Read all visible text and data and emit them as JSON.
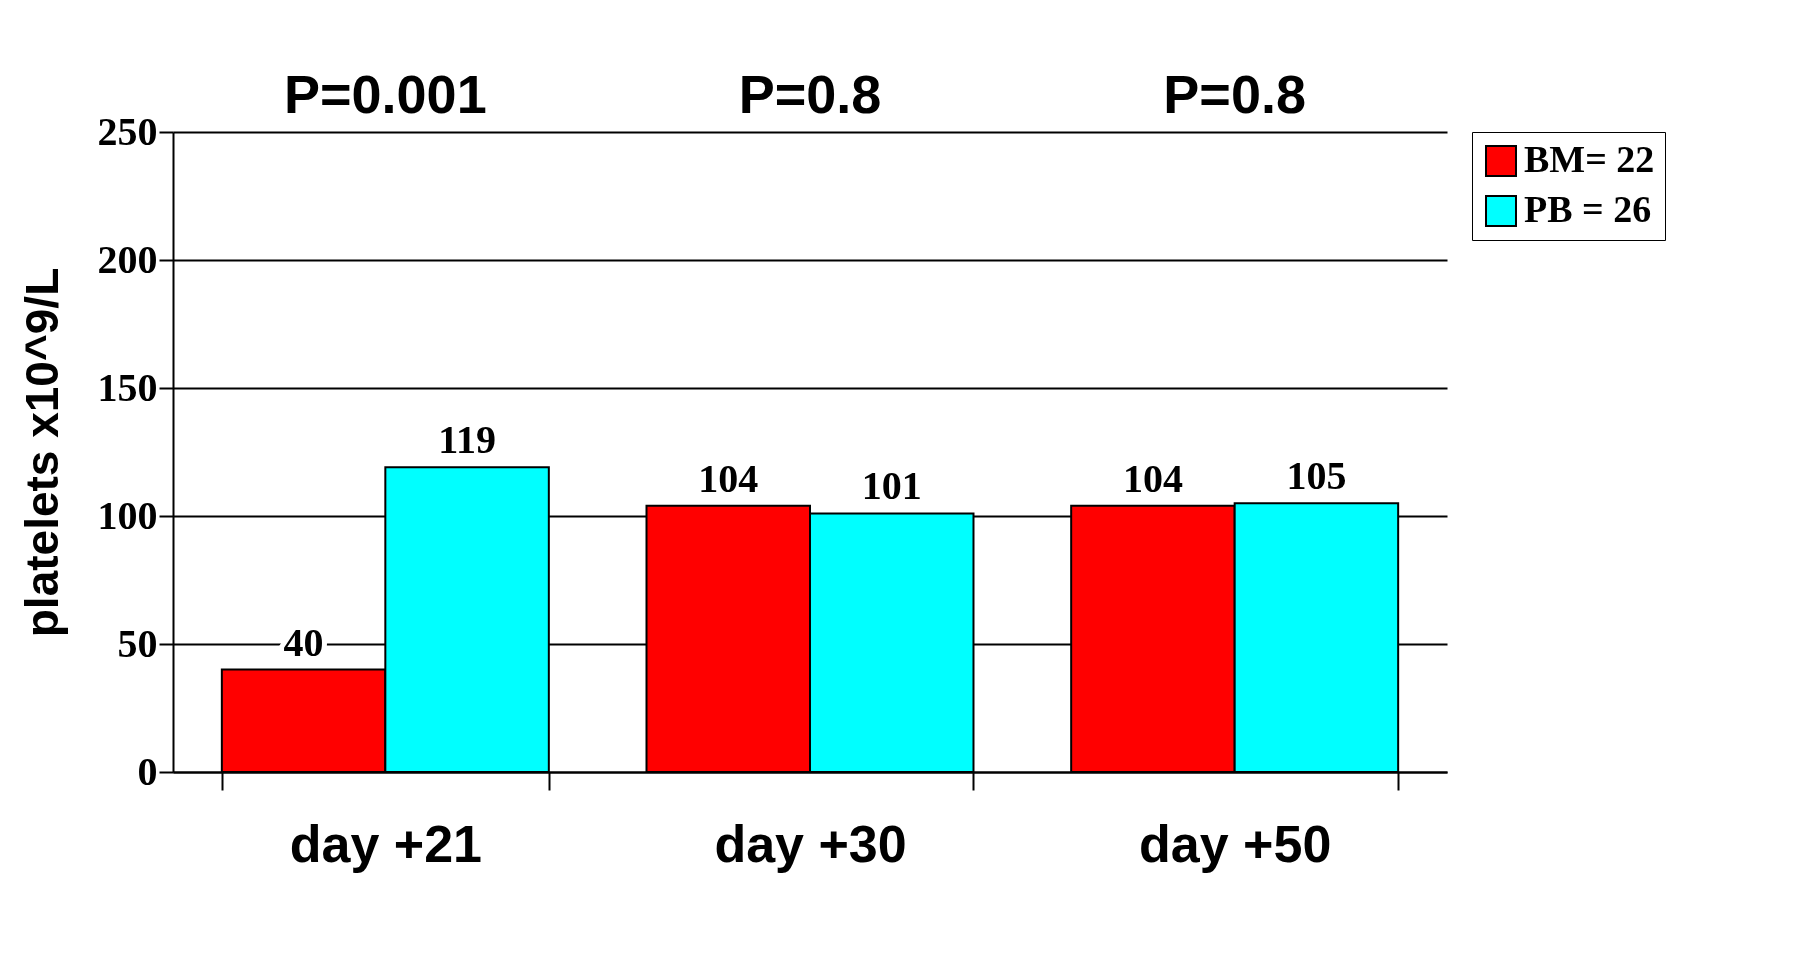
{
  "chart_data": {
    "type": "bar",
    "ylabel": "platelets x10^9/L",
    "categories": [
      "day +21",
      "day +30",
      "day +50"
    ],
    "series": [
      {
        "name": "BM= 22",
        "color": "#ff0000",
        "values": [
          40,
          104,
          104
        ]
      },
      {
        "name": "PB = 26",
        "color": "#00ffff",
        "values": [
          119,
          101,
          105
        ]
      }
    ],
    "ylim": [
      0,
      250
    ],
    "yticks": [
      0,
      50,
      100,
      150,
      200,
      250
    ],
    "grid": "y",
    "legend": "right",
    "data_labels": true,
    "annotations": [
      "P=0.001",
      "P=0.8",
      "P=0.8"
    ]
  }
}
